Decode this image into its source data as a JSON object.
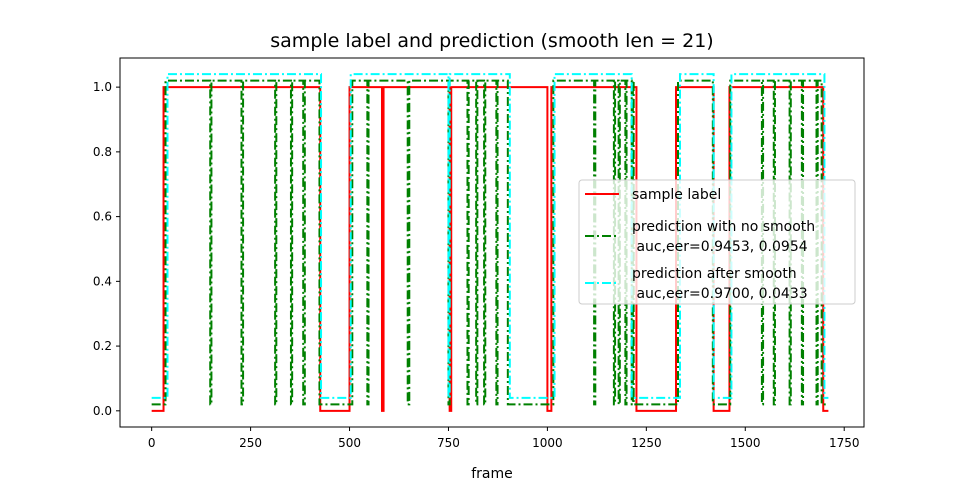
{
  "chart_data": {
    "type": "line",
    "title": "sample label and prediction (smooth len = 21)",
    "xlabel": "frame",
    "ylabel": "",
    "xlim": [
      -80,
      1800
    ],
    "ylim": [
      -0.05,
      1.09
    ],
    "xticks": [
      0,
      250,
      500,
      750,
      1000,
      1250,
      1500,
      1750
    ],
    "yticks": [
      0.0,
      0.2,
      0.4,
      0.6,
      0.8,
      1.0
    ],
    "ytick_labels": [
      "0.0",
      "0.2",
      "0.4",
      "0.6",
      "0.8",
      "1.0"
    ],
    "legend_position": "center-right",
    "series": [
      {
        "name": "sample label",
        "color": "#ff0000",
        "style": "solid",
        "low": 0.0,
        "high": 1.0,
        "x_range": [
          0,
          1710
        ],
        "high_segments": [
          [
            30,
            426
          ],
          [
            500,
            582
          ],
          [
            586,
            753
          ],
          [
            757,
            1000
          ],
          [
            1010,
            1225
          ],
          [
            1325,
            1420
          ],
          [
            1460,
            1697
          ]
        ]
      },
      {
        "name": "prediction with no smooth\n auc,eer=0.9453, 0.0954",
        "color": "#008000",
        "style": "dashdot",
        "low": 0.02,
        "high": 1.02,
        "x_range": [
          0,
          1710
        ],
        "high_segments": [
          [
            35,
            148
          ],
          [
            151,
            227
          ],
          [
            231,
            312
          ],
          [
            315,
            352
          ],
          [
            355,
            383
          ],
          [
            387,
            424
          ],
          [
            507,
            545
          ],
          [
            548,
            647
          ],
          [
            651,
            750
          ],
          [
            753,
            798
          ],
          [
            801,
            820
          ],
          [
            823,
            840
          ],
          [
            843,
            871
          ],
          [
            874,
            900
          ],
          [
            1015,
            1118
          ],
          [
            1121,
            1168
          ],
          [
            1171,
            1180
          ],
          [
            1183,
            1197
          ],
          [
            1200,
            1213
          ],
          [
            1216,
            1218
          ],
          [
            1330,
            1418
          ],
          [
            1462,
            1542
          ],
          [
            1545,
            1572
          ],
          [
            1575,
            1612
          ],
          [
            1615,
            1643
          ],
          [
            1646,
            1680
          ],
          [
            1683,
            1693
          ]
        ]
      },
      {
        "name": "prediction after smooth\n auc,eer=0.9700, 0.0433",
        "color": "#00ffff",
        "style": "dashdot",
        "low": 0.04,
        "high": 1.04,
        "x_range": [
          0,
          1710
        ],
        "high_segments": [
          [
            40,
            428
          ],
          [
            503,
            750
          ],
          [
            753,
            905
          ],
          [
            1018,
            1213
          ],
          [
            1335,
            1420
          ],
          [
            1465,
            1700
          ]
        ]
      }
    ],
    "legend": [
      {
        "line1": "sample label",
        "line2": ""
      },
      {
        "line1": "prediction with no smooth",
        "line2": " auc,eer=0.9453, 0.0954"
      },
      {
        "line1": "prediction after smooth",
        "line2": " auc,eer=0.9700, 0.0433"
      }
    ]
  }
}
